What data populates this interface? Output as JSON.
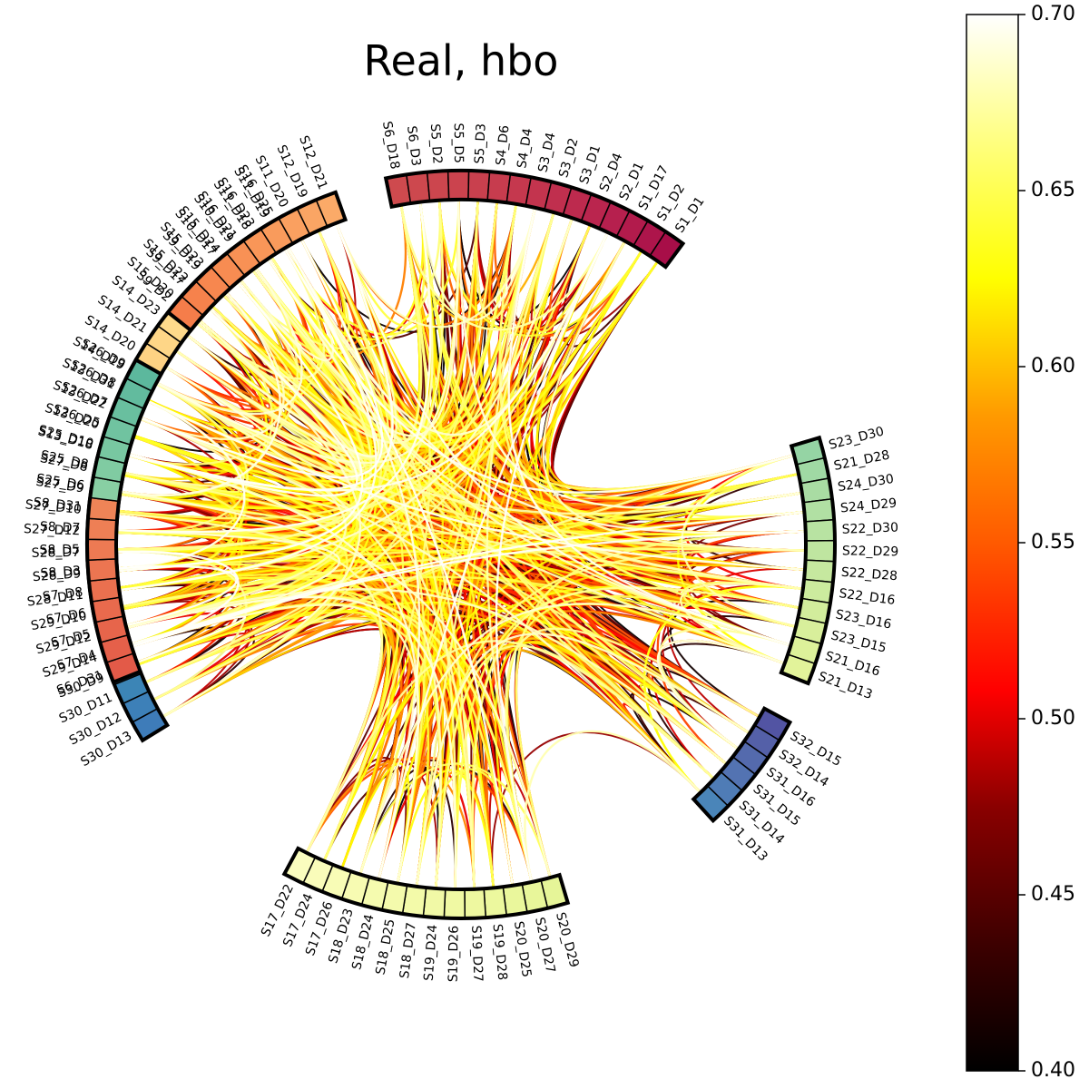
{
  "chart_data": {
    "type": "chord",
    "title": "Real, hbo",
    "colormap": "hot",
    "colorbar": {
      "range": [
        0.4,
        0.7
      ],
      "ticks": [
        "0.40",
        "0.45",
        "0.50",
        "0.55",
        "0.60",
        "0.65",
        "0.70"
      ]
    },
    "groups": [
      {
        "nodes": [
          "S6_D18",
          "S6_D3",
          "S5_D2",
          "S5_D5",
          "S5_D3",
          "S4_D6",
          "S4_D4",
          "S3_D4",
          "S3_D2",
          "S3_D1",
          "S2_D4",
          "S2_D1",
          "S1_D17",
          "S1_D2",
          "S1_D1"
        ],
        "colors": [
          "#ce4a4e",
          "#cd484e",
          "#cc464e",
          "#cb434e",
          "#c9404e",
          "#c73c4e",
          "#c5384e",
          "#c3344e",
          "#c02f4e",
          "#bd2a4e",
          "#ba254e",
          "#b6204e",
          "#b21b4c",
          "#ad154b",
          "#a80e48"
        ]
      },
      {
        "nodes": [
          "S23_D30",
          "S21_D28",
          "S24_D30",
          "S24_D29",
          "S22_D30",
          "S22_D29",
          "S22_D28",
          "S22_D16",
          "S23_D16",
          "S23_D15",
          "S21_D16",
          "S21_D13"
        ],
        "colors": [
          "#95d4a4",
          "#a0d9a4",
          "#a9dca3",
          "#b1e0a3",
          "#b8e3a2",
          "#bfe5a0",
          "#c6e89f",
          "#cceb9e",
          "#d2ed9c",
          "#d8ef9b",
          "#ddf19a",
          "#e2f39a"
        ]
      },
      {
        "nodes": [
          "S32_D15",
          "S32_D14",
          "S31_D16",
          "S31_D15",
          "S31_D14",
          "S31_D13"
        ],
        "colors": [
          "#5254a3",
          "#5460a8",
          "#546aad",
          "#5373b2",
          "#4f7cb6",
          "#4a85b9"
        ]
      },
      {
        "nodes": [
          "S20_D29",
          "S20_D27",
          "S20_D25",
          "S19_D28",
          "S19_D27",
          "S19_D26",
          "S19_D24",
          "S18_D27",
          "S18_D25",
          "S18_D24",
          "S18_D23",
          "S17_D26",
          "S17_D24",
          "S17_D22"
        ],
        "colors": [
          "#e6f598",
          "#e8f69a",
          "#eaf79c",
          "#ecf89e",
          "#eef8a0",
          "#f0f9a3",
          "#f1f9a6",
          "#f3faa9",
          "#f4faac",
          "#f5fbaf",
          "#f7fbb2",
          "#f8fcb6",
          "#f9fcba",
          "#fafdbe"
        ]
      },
      {
        "nodes": [
          "S30_D13",
          "S30_D12",
          "S30_D11",
          "S30_D9",
          "S29_D14",
          "S29_D12",
          "S29_D10",
          "S28_D11",
          "S28_D9",
          "S28_D7",
          "S27_D12",
          "S27_D10",
          "S27_D9",
          "S27_D8"
        ],
        "colors": [
          "#3e7cb9",
          "#3d80b8",
          "#3c85b6",
          "#3b8ab4",
          "#3a8eb2",
          "#3a93b0",
          "#3998ad",
          "#3a9cab",
          "#3ba1a8",
          "#3ea5a5",
          "#42a9a3",
          "#47aea1",
          "#4db29f",
          "#54b69d"
        ]
      },
      {
        "nodes": [
          "S13_D18",
          "S13_D20",
          "S13_D22",
          "S13_D31",
          "S14_D19",
          "S14_D20",
          "S14_D21",
          "S14_D23",
          "S15_D20",
          "S15_D22",
          "S15_D23",
          "S15_D24",
          "S16_D21",
          "S16_D23",
          "S16_D25"
        ],
        "colors": [
          "#fdbd6f",
          "#fdc273",
          "#fdc677",
          "#fdca7b",
          "#fece7f",
          "#fed283",
          "#fed687",
          "#feda8b",
          "#fede8f",
          "#fee193",
          "#fee497",
          "#fee79b",
          "#feea9e",
          "#feeda2",
          "#fef0a6"
        ]
      },
      {
        "nodes": [
          "S6_D31",
          "S7_D4",
          "S7_D5",
          "S7_D6",
          "S7_D8",
          "S8_D3",
          "S8_D5",
          "S8_D7",
          "S8_D31",
          "S25_D6",
          "S25_D8",
          "S25_D10",
          "S26_D5",
          "S26_D7",
          "S26_D8",
          "S26_D9"
        ],
        "colors": [
          "#e35a48",
          "#e5604a",
          "#e7654b",
          "#e96a4d",
          "#ea704f",
          "#ec7551",
          "#ed7a53",
          "#ee7f55",
          "#ef8457",
          "#88cfa3",
          "#80cba2",
          "#78c7a1",
          "#70c3a0",
          "#69bf9f",
          "#62bb9e",
          "#5cb89d"
        ]
      },
      {
        "nodes": [
          "S9_D2",
          "S9_D17",
          "S9_D19",
          "S10_D17",
          "S10_D19",
          "S11_D18",
          "S11_D19",
          "S11_D20",
          "S12_D19",
          "S12_D21"
        ],
        "colors": [
          "#f57d4a",
          "#f6824c",
          "#f7874f",
          "#f78c52",
          "#f89155",
          "#f99658",
          "#f99b5c",
          "#faa060",
          "#faa564",
          "#fbaa68"
        ]
      }
    ]
  }
}
